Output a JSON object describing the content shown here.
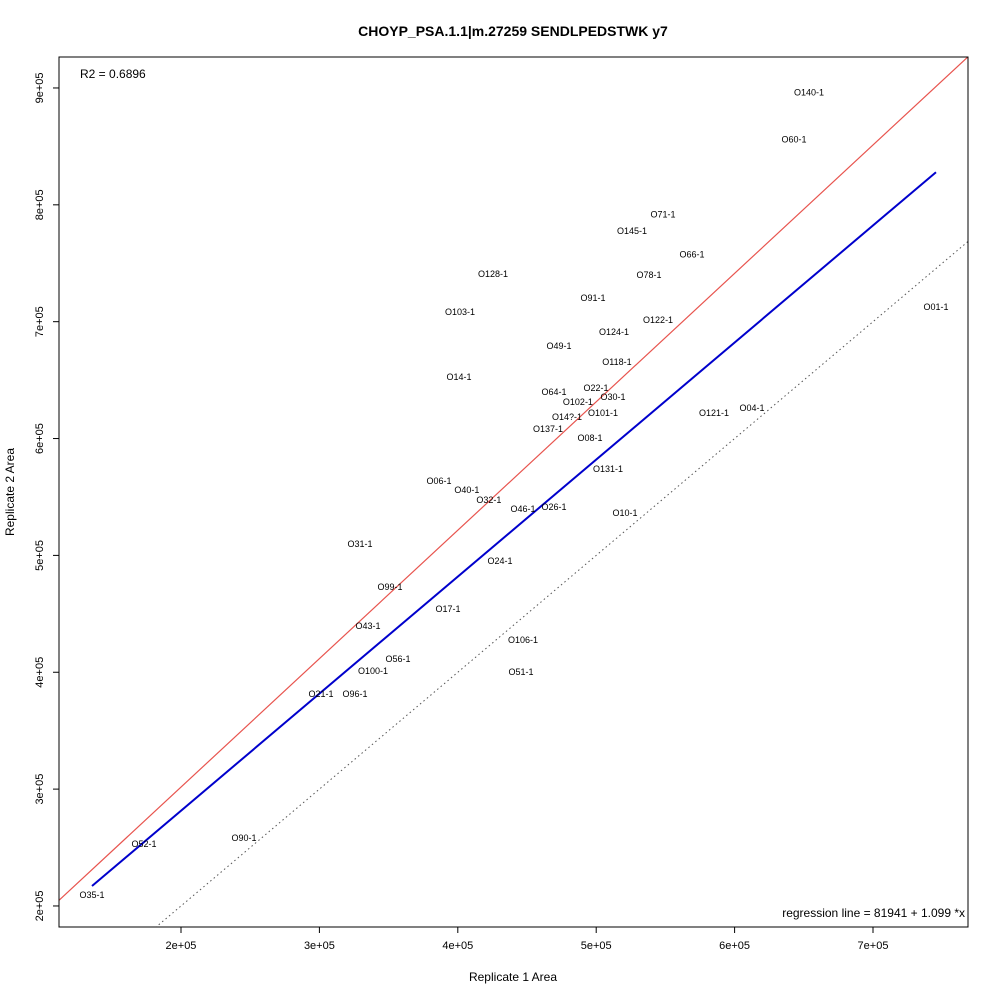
{
  "chart_data": {
    "type": "scatter",
    "title": "CHOYP_PSA.1.1|m.27259 SENDLPEDSTWK y7",
    "xlabel": "Replicate 1 Area",
    "ylabel": "Replicate 2 Area",
    "xlim": [
      111850,
      768640
    ],
    "ylim": [
      182000,
      926500
    ],
    "xticks": [
      200000,
      300000,
      400000,
      500000,
      600000,
      700000
    ],
    "xtick_labels": [
      "2e+05",
      "3e+05",
      "4e+05",
      "5e+05",
      "6e+05",
      "7e+05"
    ],
    "yticks": [
      200000,
      300000,
      400000,
      500000,
      600000,
      700000,
      800000,
      900000
    ],
    "ytick_labels": [
      "2e+05",
      "3e+05",
      "4e+05",
      "5e+05",
      "6e+05",
      "7e+05",
      "8e+05",
      "9e+05"
    ],
    "grid": false,
    "r2_text": "R2 = 0.6896",
    "regression_text": "regression line = 81941 + 1.099 *x",
    "regression": {
      "intercept": 81941,
      "slope": 1.099,
      "color": "#e8544e"
    },
    "identity_line": {
      "intercept": 0,
      "slope": 1,
      "color": "#555555",
      "style": "dotted"
    },
    "fit_segment": {
      "x": [
        135700,
        745500
      ],
      "y": [
        217100,
        827900
      ],
      "color": "#0000cc"
    },
    "points": [
      {
        "label": "O140-1",
        "x": 653800,
        "y": 896300
      },
      {
        "label": "O60-1",
        "x": 642900,
        "y": 856100
      },
      {
        "label": "O71-1",
        "x": 548300,
        "y": 791900
      },
      {
        "label": "O145-1",
        "x": 525900,
        "y": 777400
      },
      {
        "label": "O66-1",
        "x": 569200,
        "y": 757700
      },
      {
        "label": "O128-1",
        "x": 425400,
        "y": 740600
      },
      {
        "label": "O78-1",
        "x": 538200,
        "y": 739800
      },
      {
        "label": "O91-1",
        "x": 497700,
        "y": 720100
      },
      {
        "label": "O01-1",
        "x": 745500,
        "y": 712400
      },
      {
        "label": "O103-1",
        "x": 401600,
        "y": 708100
      },
      {
        "label": "O122-1",
        "x": 544700,
        "y": 701300
      },
      {
        "label": "O124-1",
        "x": 512900,
        "y": 691000
      },
      {
        "label": "O49-1",
        "x": 473100,
        "y": 679000
      },
      {
        "label": "O118-1",
        "x": 515000,
        "y": 665400
      },
      {
        "label": "O14-1",
        "x": 400900,
        "y": 652500
      },
      {
        "label": "O64-1",
        "x": 469500,
        "y": 639700
      },
      {
        "label": "O22-1",
        "x": 499900,
        "y": 643100
      },
      {
        "label": "O30-1",
        "x": 512100,
        "y": 635400
      },
      {
        "label": "O102-1",
        "x": 489700,
        "y": 626900
      },
      {
        "label": "O14?-1",
        "x": 491900,
        "y": 622600
      },
      {
        "label": "O101-1",
        "x": 504900,
        "y": 621700
      },
      {
        "label": "O121-1",
        "x": 585100,
        "y": 621700
      },
      {
        "label": "O04-1",
        "x": 612600,
        "y": 626000
      },
      {
        "label": "O137-1",
        "x": 465200,
        "y": 608000
      },
      {
        "label": "O08-1",
        "x": 495500,
        "y": 600300
      },
      {
        "label": "O131-1",
        "x": 508500,
        "y": 573800
      },
      {
        "label": "O06-1",
        "x": 386400,
        "y": 563600
      },
      {
        "label": "O40-1",
        "x": 406600,
        "y": 555900
      },
      {
        "label": "O32-1",
        "x": 422500,
        "y": 547300
      },
      {
        "label": "O46-1",
        "x": 452900,
        "y": 539600
      },
      {
        "label": "O26-1",
        "x": 465200,
        "y": 541300
      },
      {
        "label": "O10-1",
        "x": 520800,
        "y": 536200
      },
      {
        "label": "O31-1",
        "x": 329300,
        "y": 509700
      },
      {
        "label": "O24-1",
        "x": 430500,
        "y": 495100
      },
      {
        "label": "O99-1",
        "x": 351000,
        "y": 472900
      },
      {
        "label": "O17-1",
        "x": 392900,
        "y": 454100
      },
      {
        "label": "O43-1",
        "x": 335100,
        "y": 439500
      },
      {
        "label": "O106-1",
        "x": 447100,
        "y": 427500
      },
      {
        "label": "O56-1",
        "x": 356800,
        "y": 411300
      },
      {
        "label": "O100-1",
        "x": 338700,
        "y": 401000
      },
      {
        "label": "O51-1",
        "x": 445700,
        "y": 400200
      },
      {
        "label": "O21-1",
        "x": 301200,
        "y": 381400
      },
      {
        "label": "O96-1",
        "x": 325700,
        "y": 381400
      },
      {
        "label": "O90-1",
        "x": 245500,
        "y": 258200
      },
      {
        "label": "O52-1",
        "x": 173300,
        "y": 253000
      },
      {
        "label": "O35-1",
        "x": 135700,
        "y": 209400
      }
    ]
  }
}
